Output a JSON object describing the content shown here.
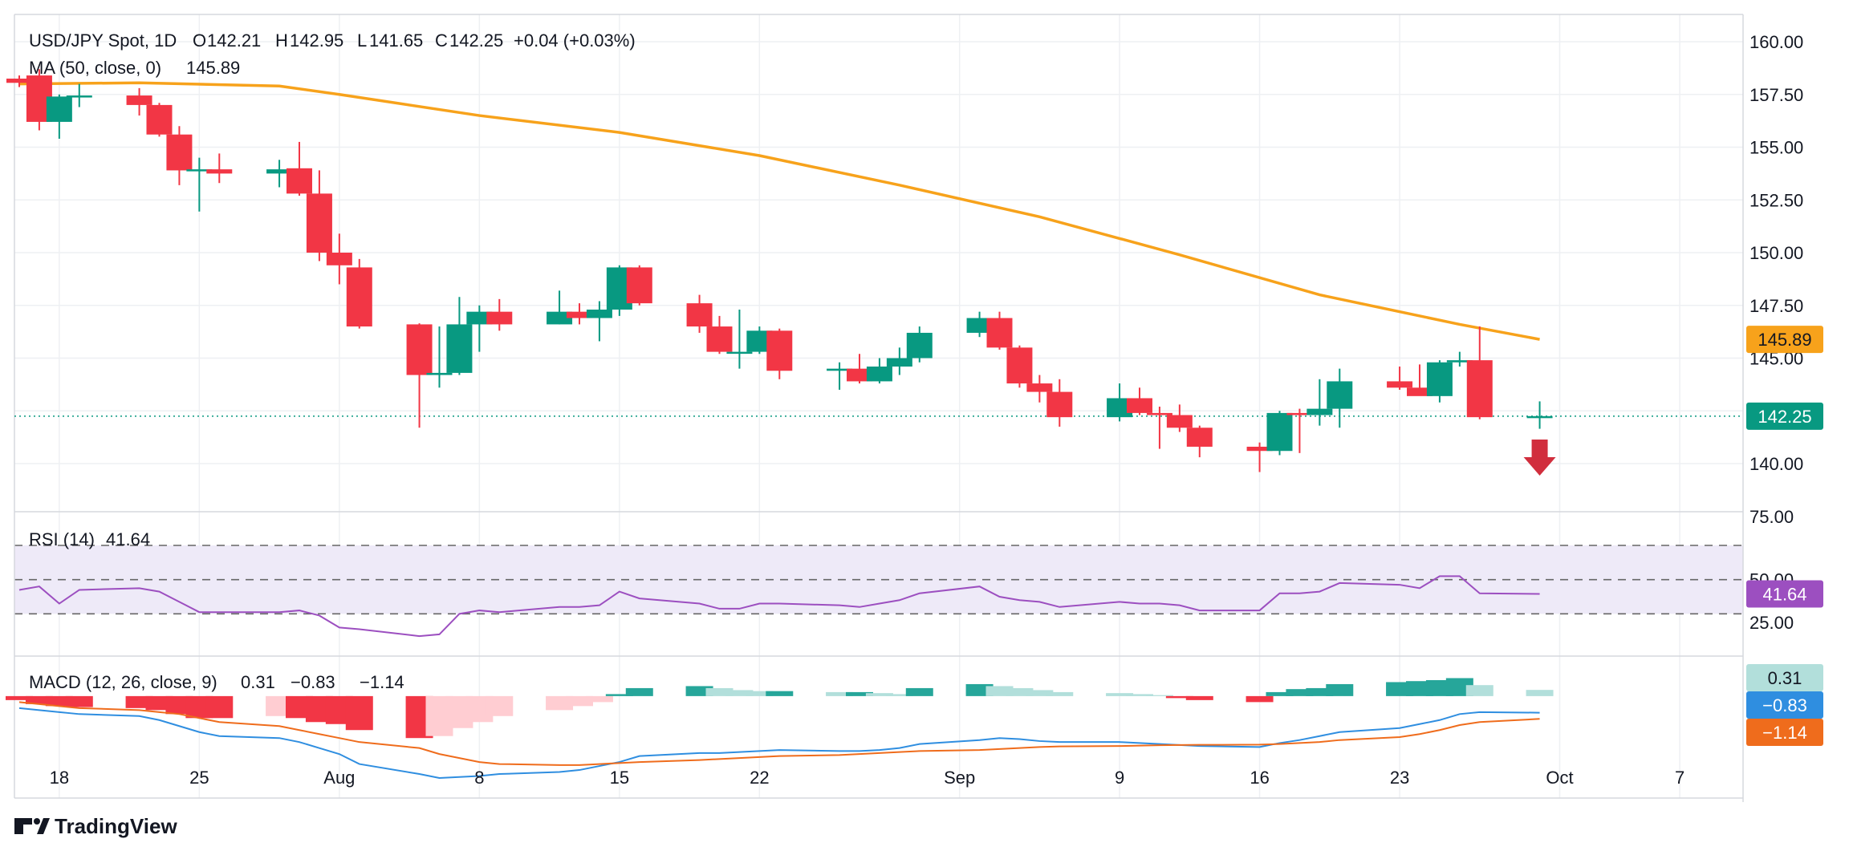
{
  "chart_data": {
    "type": "candlestick",
    "title": "USD/JPY Spot, 1D",
    "ohlc_header": {
      "o": "142.21",
      "h": "142.95",
      "l": "141.65",
      "c": "142.25",
      "chg": "+0.04 (+0.03%)"
    },
    "date_axis_labels": [
      "18",
      "25",
      "Aug",
      "8",
      "15",
      "22",
      "Sep",
      "9",
      "16",
      "23",
      "Oct",
      "7"
    ],
    "price_ticks": [
      "160.00",
      "157.50",
      "155.00",
      "152.50",
      "150.00",
      "147.50",
      "145.00",
      "140.00"
    ],
    "last_price": "142.25",
    "candles": [
      {
        "date": "2024-07-16",
        "o": 158.25,
        "h": 158.4,
        "l": 157.85,
        "c": 158.05
      },
      {
        "date": "2024-07-17",
        "o": 158.4,
        "h": 158.7,
        "l": 155.8,
        "c": 156.2
      },
      {
        "date": "2024-07-18",
        "o": 156.2,
        "h": 157.5,
        "l": 155.4,
        "c": 157.4
      },
      {
        "date": "2024-07-19",
        "o": 157.4,
        "h": 158.0,
        "l": 156.9,
        "c": 157.45
      },
      {
        "date": "2024-07-22",
        "o": 157.45,
        "h": 157.8,
        "l": 156.5,
        "c": 157.0
      },
      {
        "date": "2024-07-23",
        "o": 157.0,
        "h": 157.1,
        "l": 155.5,
        "c": 155.6
      },
      {
        "date": "2024-07-24",
        "o": 155.6,
        "h": 156.0,
        "l": 153.2,
        "c": 153.9
      },
      {
        "date": "2024-07-25",
        "o": 153.9,
        "h": 154.5,
        "l": 151.95,
        "c": 153.95
      },
      {
        "date": "2024-07-26",
        "o": 153.95,
        "h": 154.7,
        "l": 153.3,
        "c": 153.75
      },
      {
        "date": "2024-07-29",
        "o": 153.75,
        "h": 154.4,
        "l": 153.1,
        "c": 153.95
      },
      {
        "date": "2024-07-30",
        "o": 154.0,
        "h": 155.25,
        "l": 152.7,
        "c": 152.8
      },
      {
        "date": "2024-07-31",
        "o": 152.8,
        "h": 153.9,
        "l": 149.6,
        "c": 150.0
      },
      {
        "date": "2024-08-01",
        "o": 150.0,
        "h": 150.9,
        "l": 148.5,
        "c": 149.4
      },
      {
        "date": "2024-08-02",
        "o": 149.3,
        "h": 149.7,
        "l": 146.4,
        "c": 146.5
      },
      {
        "date": "2024-08-05",
        "o": 146.6,
        "h": 146.65,
        "l": 141.7,
        "c": 144.2
      },
      {
        "date": "2024-08-06",
        "o": 144.2,
        "h": 146.5,
        "l": 143.6,
        "c": 144.3
      },
      {
        "date": "2024-08-07",
        "o": 144.3,
        "h": 147.9,
        "l": 144.2,
        "c": 146.6
      },
      {
        "date": "2024-08-08",
        "o": 146.6,
        "h": 147.5,
        "l": 145.3,
        "c": 147.2
      },
      {
        "date": "2024-08-09",
        "o": 147.2,
        "h": 147.8,
        "l": 146.3,
        "c": 146.6
      },
      {
        "date": "2024-08-12",
        "o": 146.6,
        "h": 148.2,
        "l": 146.6,
        "c": 147.2
      },
      {
        "date": "2024-08-13",
        "o": 147.2,
        "h": 147.6,
        "l": 146.6,
        "c": 146.9
      },
      {
        "date": "2024-08-14",
        "o": 146.9,
        "h": 147.7,
        "l": 145.8,
        "c": 147.3
      },
      {
        "date": "2024-08-15",
        "o": 147.3,
        "h": 149.4,
        "l": 147.0,
        "c": 149.3
      },
      {
        "date": "2024-08-16",
        "o": 149.3,
        "h": 149.4,
        "l": 147.5,
        "c": 147.6
      },
      {
        "date": "2024-08-19",
        "o": 147.6,
        "h": 148.0,
        "l": 146.2,
        "c": 146.5
      },
      {
        "date": "2024-08-20",
        "o": 146.5,
        "h": 147.0,
        "l": 145.2,
        "c": 145.3
      },
      {
        "date": "2024-08-21",
        "o": 145.3,
        "h": 147.3,
        "l": 144.5,
        "c": 145.3
      },
      {
        "date": "2024-08-22",
        "o": 145.3,
        "h": 146.5,
        "l": 145.2,
        "c": 146.3
      },
      {
        "date": "2024-08-23",
        "o": 146.3,
        "h": 146.4,
        "l": 144.0,
        "c": 144.4
      },
      {
        "date": "2024-08-26",
        "o": 144.4,
        "h": 144.8,
        "l": 143.5,
        "c": 144.5
      },
      {
        "date": "2024-08-27",
        "o": 144.5,
        "h": 145.2,
        "l": 143.8,
        "c": 143.9
      },
      {
        "date": "2024-08-28",
        "o": 143.9,
        "h": 145.0,
        "l": 143.8,
        "c": 144.6
      },
      {
        "date": "2024-08-29",
        "o": 144.6,
        "h": 145.5,
        "l": 144.2,
        "c": 145.0
      },
      {
        "date": "2024-08-30",
        "o": 145.0,
        "h": 146.5,
        "l": 144.8,
        "c": 146.2
      },
      {
        "date": "2024-09-02",
        "o": 146.2,
        "h": 147.2,
        "l": 146.0,
        "c": 146.9
      },
      {
        "date": "2024-09-03",
        "o": 146.9,
        "h": 147.2,
        "l": 145.4,
        "c": 145.5
      },
      {
        "date": "2024-09-04",
        "o": 145.5,
        "h": 145.6,
        "l": 143.6,
        "c": 143.8
      },
      {
        "date": "2024-09-05",
        "o": 143.8,
        "h": 144.2,
        "l": 142.9,
        "c": 143.4
      },
      {
        "date": "2024-09-06",
        "o": 143.4,
        "h": 144.0,
        "l": 141.75,
        "c": 142.2
      },
      {
        "date": "2024-09-09",
        "o": 142.2,
        "h": 143.8,
        "l": 142.0,
        "c": 143.1
      },
      {
        "date": "2024-09-10",
        "o": 143.1,
        "h": 143.6,
        "l": 142.3,
        "c": 142.4
      },
      {
        "date": "2024-09-11",
        "o": 142.4,
        "h": 142.7,
        "l": 140.7,
        "c": 142.3
      },
      {
        "date": "2024-09-12",
        "o": 142.3,
        "h": 142.8,
        "l": 141.5,
        "c": 141.7
      },
      {
        "date": "2024-09-13",
        "o": 141.7,
        "h": 141.8,
        "l": 140.3,
        "c": 140.8
      },
      {
        "date": "2024-09-16",
        "o": 140.8,
        "h": 141.0,
        "l": 139.6,
        "c": 140.6
      },
      {
        "date": "2024-09-17",
        "o": 140.6,
        "h": 142.5,
        "l": 140.4,
        "c": 142.4
      },
      {
        "date": "2024-09-18",
        "o": 142.4,
        "h": 142.6,
        "l": 140.5,
        "c": 142.3
      },
      {
        "date": "2024-09-19",
        "o": 142.3,
        "h": 144.0,
        "l": 141.8,
        "c": 142.6
      },
      {
        "date": "2024-09-20",
        "o": 142.6,
        "h": 144.5,
        "l": 141.7,
        "c": 143.9
      },
      {
        "date": "2024-09-23",
        "o": 143.9,
        "h": 144.6,
        "l": 143.5,
        "c": 143.6
      },
      {
        "date": "2024-09-24",
        "o": 143.6,
        "h": 144.7,
        "l": 143.3,
        "c": 143.2
      },
      {
        "date": "2024-09-25",
        "o": 143.2,
        "h": 144.9,
        "l": 142.9,
        "c": 144.8
      },
      {
        "date": "2024-09-26",
        "o": 144.8,
        "h": 145.3,
        "l": 144.6,
        "c": 144.9
      },
      {
        "date": "2024-09-27",
        "o": 144.9,
        "h": 146.5,
        "l": 142.1,
        "c": 142.2
      },
      {
        "date": "2024-09-30",
        "o": 142.21,
        "h": 142.95,
        "l": 141.65,
        "c": 142.25
      }
    ],
    "ma": {
      "label": "MA (50, close, 0)",
      "value_label": "145.89",
      "points": [
        [
          "2024-07-16",
          158.0
        ],
        [
          "2024-07-22",
          158.05
        ],
        [
          "2024-07-29",
          157.9
        ],
        [
          "2024-08-01",
          157.5
        ],
        [
          "2024-08-08",
          156.5
        ],
        [
          "2024-08-15",
          155.7
        ],
        [
          "2024-08-22",
          154.6
        ],
        [
          "2024-08-29",
          153.2
        ],
        [
          "2024-09-05",
          151.7
        ],
        [
          "2024-09-12",
          149.9
        ],
        [
          "2024-09-19",
          148.0
        ],
        [
          "2024-09-26",
          146.6
        ],
        [
          "2024-09-30",
          145.89
        ]
      ]
    },
    "rsi": {
      "label": "RSI (14)",
      "value_label": "41.64",
      "ticks": [
        "75.00",
        "50.00",
        "25.00"
      ],
      "levels": [
        70,
        50,
        30
      ],
      "ylim": [
        10,
        85
      ],
      "values": [
        44,
        46,
        36,
        44,
        45,
        43,
        37,
        31,
        31,
        31,
        32,
        29,
        22,
        21,
        17,
        18,
        30,
        32,
        31,
        34,
        34,
        35,
        43,
        39,
        36,
        33,
        33,
        36,
        36,
        35,
        34,
        36,
        38,
        42,
        46,
        40,
        38,
        37,
        34,
        37,
        36,
        36,
        35,
        32,
        32,
        42,
        42,
        43,
        48,
        47,
        45,
        52,
        52,
        42,
        41.64
      ]
    },
    "macd": {
      "label": "MACD (12, 26, close, 9)",
      "hist_label": "0.31",
      "macd_label": "−0.83",
      "signal_label": "−1.14",
      "ylim": [
        -4.3,
        1.2
      ],
      "hist": [
        -0.2,
        -0.4,
        -0.5,
        -0.55,
        -0.6,
        -0.7,
        -0.9,
        -1.1,
        -1.1,
        -1.0,
        -1.1,
        -1.3,
        -1.4,
        -1.7,
        -2.1,
        -2.0,
        -1.6,
        -1.3,
        -1.0,
        -0.7,
        -0.5,
        -0.3,
        0.1,
        0.4,
        0.5,
        0.4,
        0.3,
        0.25,
        0.25,
        0.2,
        0.2,
        0.15,
        0.1,
        0.4,
        0.6,
        0.5,
        0.4,
        0.3,
        0.2,
        0.15,
        0.1,
        0.05,
        -0.1,
        -0.2,
        -0.3,
        0.2,
        0.35,
        0.4,
        0.6,
        0.7,
        0.75,
        0.8,
        0.9,
        0.55,
        0.31
      ],
      "macd": [
        -0.6,
        -0.7,
        -0.8,
        -0.9,
        -1.0,
        -1.2,
        -1.5,
        -1.8,
        -2.0,
        -2.1,
        -2.3,
        -2.6,
        -2.9,
        -3.4,
        -3.9,
        -4.1,
        -4.05,
        -4.0,
        -3.9,
        -3.8,
        -3.7,
        -3.5,
        -3.3,
        -3.0,
        -2.85,
        -2.85,
        -2.8,
        -2.75,
        -2.7,
        -2.75,
        -2.75,
        -2.7,
        -2.6,
        -2.4,
        -2.2,
        -2.1,
        -2.15,
        -2.25,
        -2.3,
        -2.3,
        -2.35,
        -2.4,
        -2.45,
        -2.5,
        -2.55,
        -2.35,
        -2.2,
        -2.0,
        -1.8,
        -1.6,
        -1.4,
        -1.2,
        -0.9,
        -0.8,
        -0.83
      ],
      "signal": [
        -0.3,
        -0.4,
        -0.5,
        -0.6,
        -0.7,
        -0.8,
        -0.9,
        -1.1,
        -1.3,
        -1.5,
        -1.7,
        -1.9,
        -2.1,
        -2.3,
        -2.6,
        -2.9,
        -3.1,
        -3.3,
        -3.4,
        -3.45,
        -3.45,
        -3.4,
        -3.35,
        -3.3,
        -3.2,
        -3.15,
        -3.1,
        -3.05,
        -3.0,
        -2.95,
        -2.9,
        -2.85,
        -2.8,
        -2.75,
        -2.7,
        -2.65,
        -2.6,
        -2.55,
        -2.52,
        -2.5,
        -2.48,
        -2.46,
        -2.45,
        -2.44,
        -2.43,
        -2.4,
        -2.35,
        -2.3,
        -2.2,
        -2.05,
        -1.9,
        -1.7,
        -1.45,
        -1.3,
        -1.14
      ]
    },
    "signal_arrow": "down",
    "colors": {
      "up": "#089981",
      "down": "#f23645",
      "ma": "#f7a21b",
      "rsi": "#9c4fc0",
      "rsi_band": "#eeeaf8",
      "macd": "#2f8ee0",
      "signal": "#ef6c1c",
      "hist_pos": "#26a69a",
      "hist_pos_light": "#b2dfdb",
      "hist_neg": "#f23645",
      "hist_neg_light": "#ffcdd2",
      "arrow": "#d12e3d",
      "last_price_box": "#089981",
      "ma_box": "#f7a21b",
      "rsi_box": "#9c4fc0",
      "macd_box": "#2f8ee0",
      "signal_box": "#ef6c1c",
      "hist_box": "#b2dfdb"
    }
  },
  "brand": {
    "name": "TradingView",
    "logo": "tradingview-logo"
  }
}
